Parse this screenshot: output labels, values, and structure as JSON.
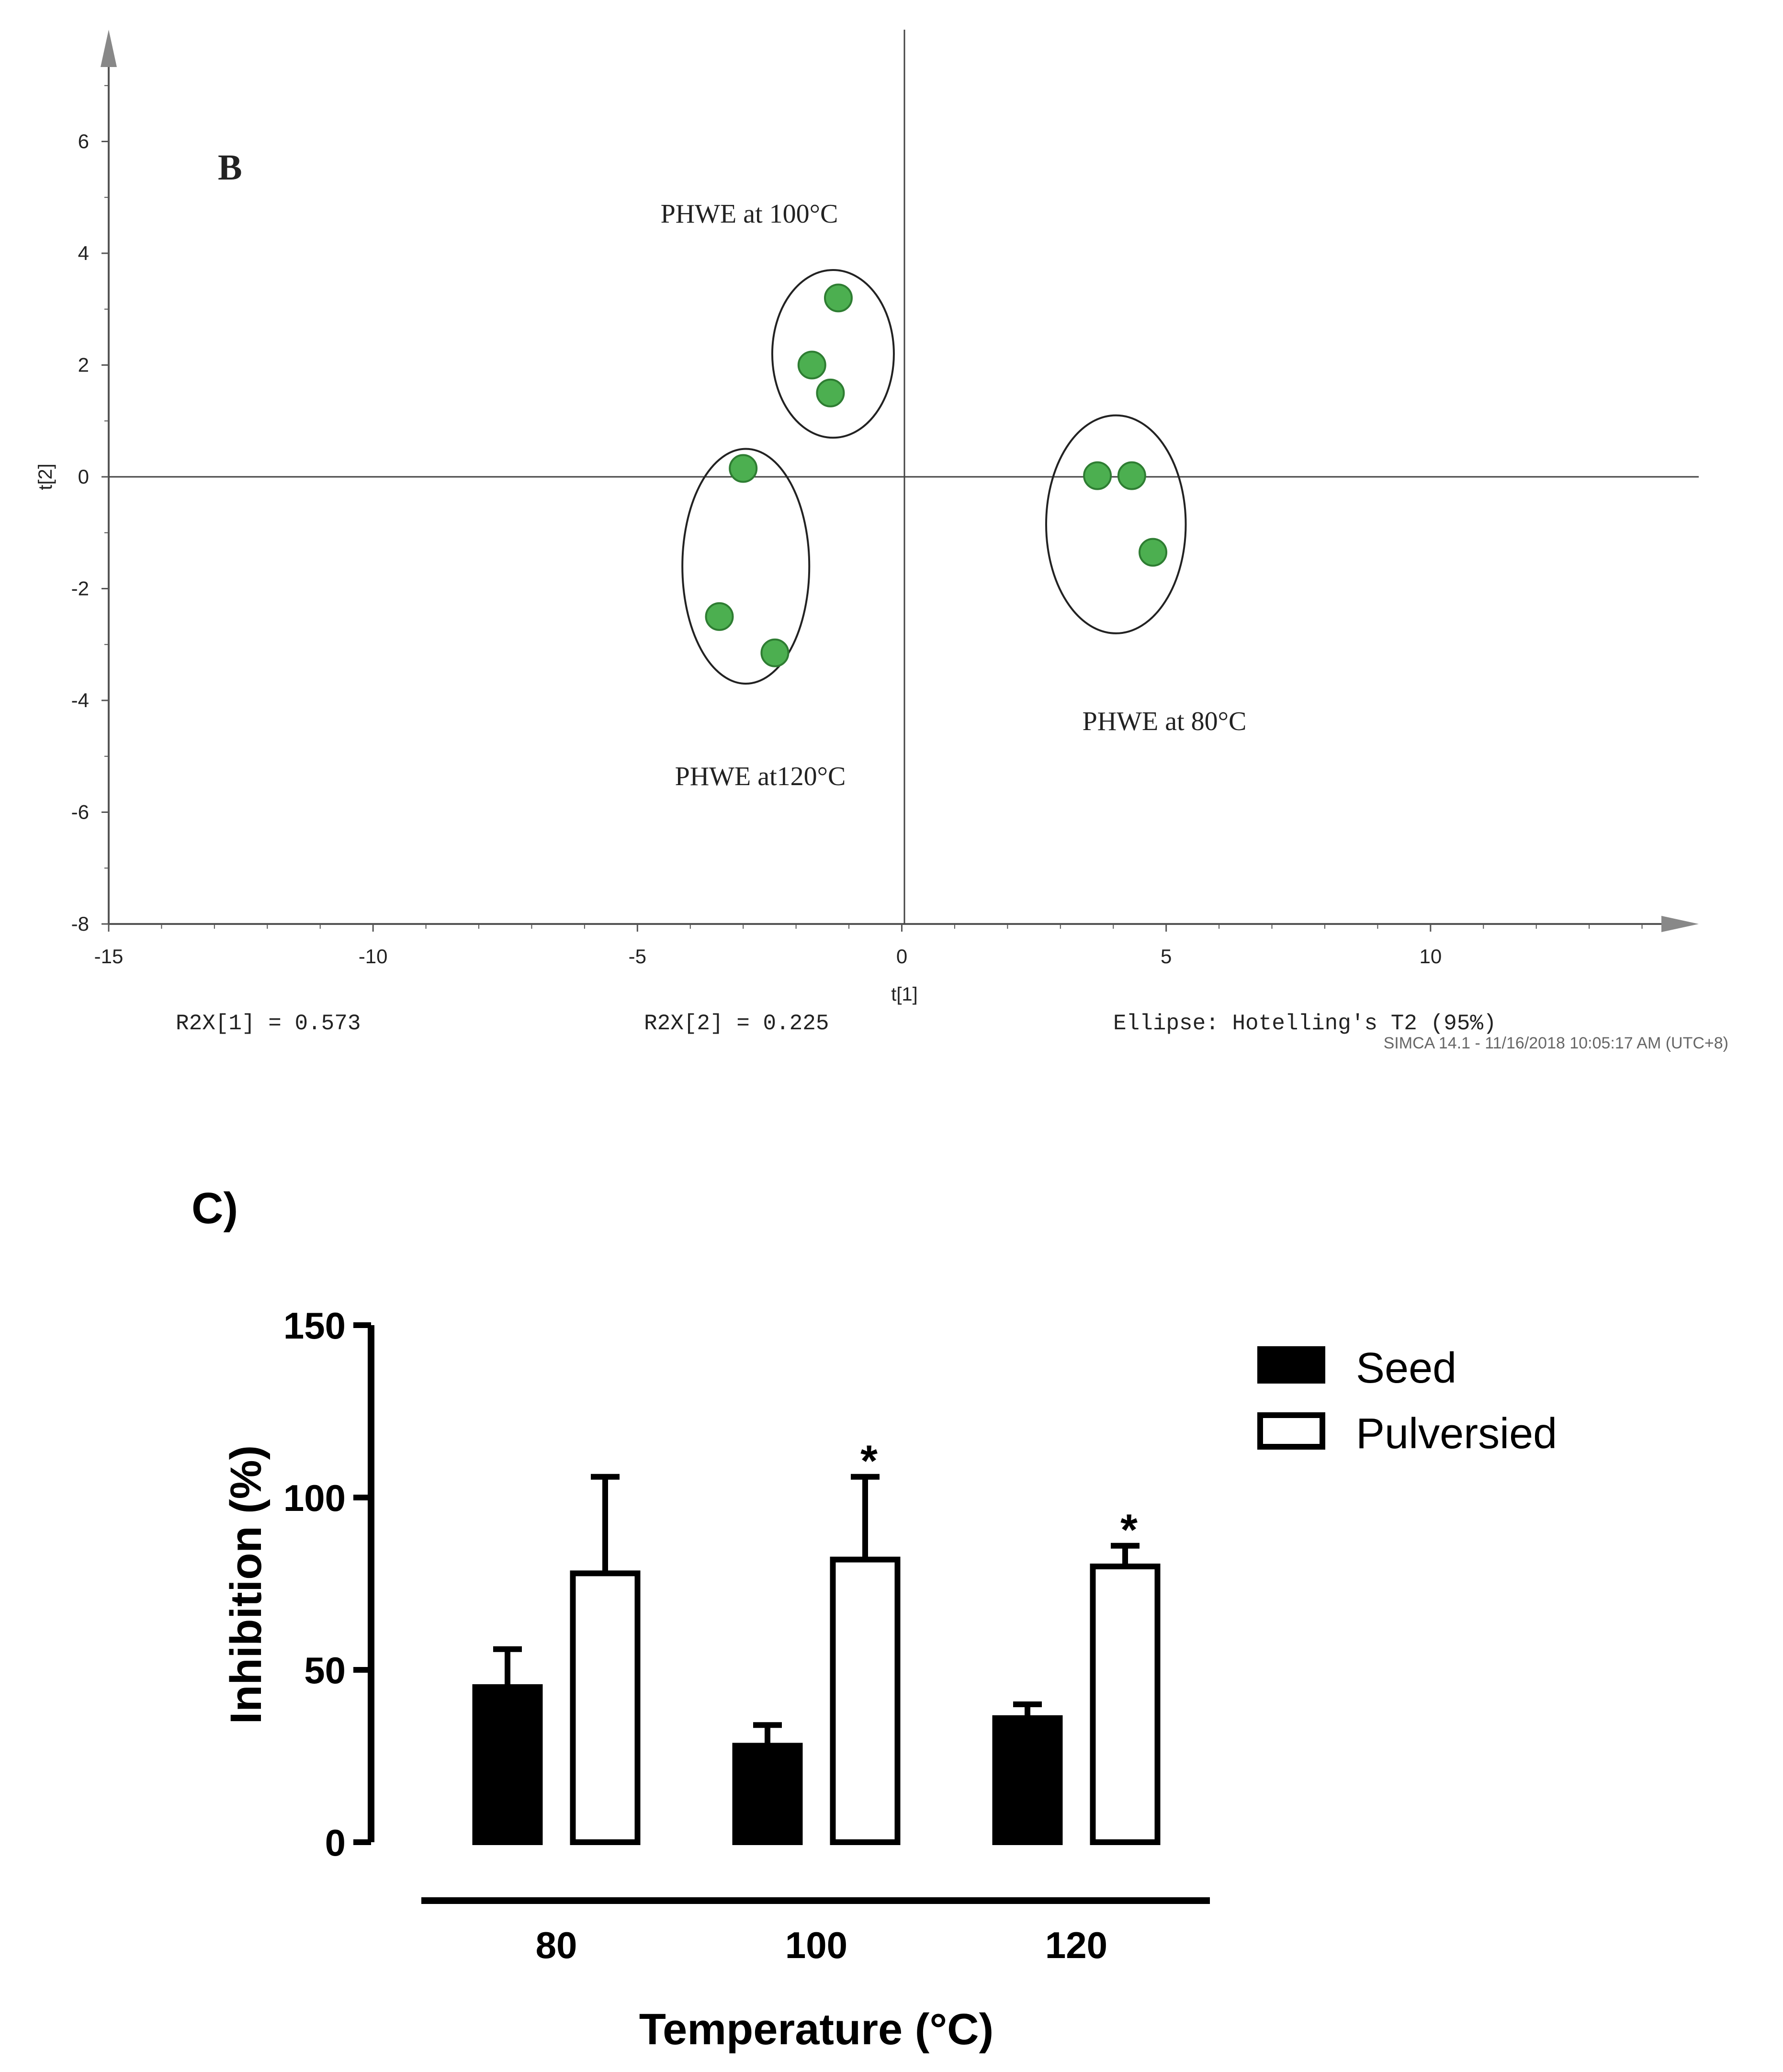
{
  "chart_data": [
    {
      "type": "scatter",
      "panel_label": "B",
      "xlabel": "t[1]",
      "ylabel": "t[2]",
      "xlim": [
        -15,
        15
      ],
      "ylim": [
        -8,
        8
      ],
      "xticks": [
        "-15",
        "-10",
        "-5",
        "0",
        "5",
        "10"
      ],
      "yticks": [
        "6",
        "4",
        "2",
        "0",
        "-2",
        "-4",
        "-6",
        "-8"
      ],
      "groups": [
        {
          "name": "PHWE at 100°C",
          "points": [
            [
              -1.2,
              3.2
            ],
            [
              -1.7,
              2.0
            ],
            [
              -1.35,
              1.5
            ]
          ],
          "ellipse": {
            "cx": -1.3,
            "cy": 2.2,
            "rx": 1.15,
            "ry": 1.5
          }
        },
        {
          "name": "PHWE at120°C",
          "points": [
            [
              -3.0,
              0.15
            ],
            [
              -3.45,
              -2.5
            ],
            [
              -2.4,
              -3.15
            ]
          ],
          "ellipse": {
            "cx": -2.95,
            "cy": -1.6,
            "rx": 1.2,
            "ry": 2.1
          }
        },
        {
          "name": "PHWE at 80°C",
          "points": [
            [
              3.7,
              0.02
            ],
            [
              4.35,
              0.02
            ],
            [
              4.75,
              -1.35
            ]
          ],
          "ellipse": {
            "cx": 4.05,
            "cy": -0.85,
            "rx": 1.32,
            "ry": 1.95
          }
        }
      ],
      "footer": {
        "r2x1": "R2X[1] = 0.573",
        "r2x2": "R2X[2] = 0.225",
        "ellipse_note": "Ellipse: Hotelling's T2 (95%)",
        "software": "SIMCA 14.1 - 11/16/2018 10:05:17 AM (UTC+8)"
      },
      "colors": {
        "point": "#4caf50",
        "point_stroke": "#2e7d32"
      }
    },
    {
      "type": "bar",
      "panel_label": "C)",
      "categories": [
        "80",
        "100",
        "120"
      ],
      "series": [
        {
          "name": "Seed",
          "values": [
            45,
            28,
            36
          ],
          "errors": [
            11,
            6,
            4
          ],
          "fill": "#000000"
        },
        {
          "name": "Pulversied",
          "values": [
            78,
            82,
            80
          ],
          "errors": [
            28,
            24,
            6
          ],
          "fill": "#ffffff"
        }
      ],
      "significance": [
        "",
        "*",
        "*"
      ],
      "xlabel": "Temperature (°C)",
      "ylabel": "Inhibition (%)",
      "ylim": [
        0,
        150
      ],
      "yticks": [
        "0",
        "50",
        "100",
        "150"
      ],
      "legend_position": "top-right"
    }
  ]
}
